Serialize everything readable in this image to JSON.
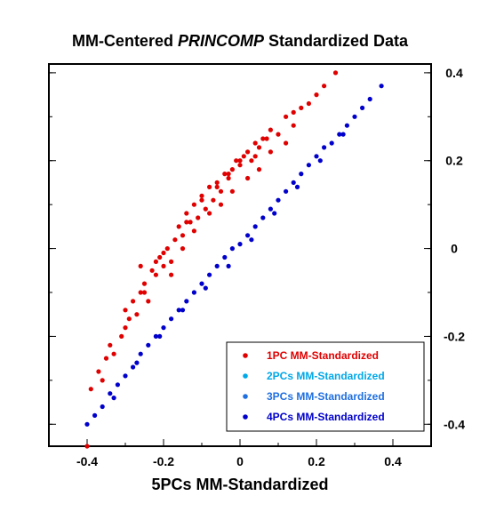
{
  "chart_data": {
    "type": "scatter",
    "title_parts": [
      "MM-Centered ",
      "PRINCOMP",
      " Standardized Data"
    ],
    "xlabel": "5PCs MM-Standardized",
    "ylabel": "",
    "xlim": [
      -0.5,
      0.5
    ],
    "ylim": [
      -0.45,
      0.42
    ],
    "x_ticks": [
      "-0.4",
      "-0.2",
      "0",
      "0.2",
      "0.4"
    ],
    "y_ticks": [
      "0.4",
      "0.2",
      "0",
      "-0.2",
      "-0.4"
    ],
    "y_axis_side": "right",
    "grid": false,
    "legend_position": "bottom-right",
    "series": [
      {
        "name": "1PC MM-Standardized",
        "color": "#e00000",
        "x": [
          -0.4,
          -0.39,
          -0.37,
          -0.36,
          -0.35,
          -0.34,
          -0.33,
          -0.31,
          -0.3,
          -0.29,
          -0.28,
          -0.27,
          -0.26,
          -0.25,
          -0.24,
          -0.23,
          -0.22,
          -0.21,
          -0.2,
          -0.19,
          -0.18,
          -0.17,
          -0.16,
          -0.15,
          -0.14,
          -0.13,
          -0.12,
          -0.11,
          -0.1,
          -0.09,
          -0.08,
          -0.07,
          -0.06,
          -0.05,
          -0.04,
          -0.03,
          -0.02,
          -0.01,
          0.0,
          0.01,
          0.02,
          0.03,
          0.04,
          0.05,
          0.06,
          0.08,
          0.1,
          0.12,
          0.14,
          0.16,
          0.18,
          0.2,
          0.22,
          0.25,
          -0.3,
          -0.25,
          -0.22,
          -0.18,
          -0.15,
          -0.12,
          -0.08,
          -0.05,
          -0.02,
          0.02,
          0.05,
          0.08,
          0.12,
          0.14,
          -0.26,
          -0.2,
          -0.14,
          -0.1,
          -0.06,
          -0.03,
          0.0,
          0.04,
          0.07
        ],
        "y": [
          -0.45,
          -0.32,
          -0.28,
          -0.3,
          -0.25,
          -0.22,
          -0.24,
          -0.2,
          -0.18,
          -0.16,
          -0.12,
          -0.15,
          -0.1,
          -0.08,
          -0.12,
          -0.05,
          -0.06,
          -0.02,
          -0.04,
          0.0,
          -0.03,
          0.02,
          0.05,
          0.03,
          0.08,
          0.06,
          0.1,
          0.07,
          0.12,
          0.09,
          0.14,
          0.11,
          0.15,
          0.13,
          0.17,
          0.16,
          0.18,
          0.2,
          0.19,
          0.21,
          0.22,
          0.2,
          0.24,
          0.23,
          0.25,
          0.27,
          0.26,
          0.3,
          0.31,
          0.32,
          0.33,
          0.35,
          0.37,
          0.4,
          -0.14,
          -0.1,
          -0.03,
          -0.06,
          0.0,
          0.04,
          0.08,
          0.1,
          0.13,
          0.16,
          0.18,
          0.22,
          0.24,
          0.28,
          -0.04,
          -0.01,
          0.06,
          0.11,
          0.14,
          0.17,
          0.2,
          0.21,
          0.25
        ]
      },
      {
        "name": "2PCs MM-Standardized",
        "color": "#00a8e8",
        "x": [],
        "y": []
      },
      {
        "name": "3PCs MM-Standardized",
        "color": "#1f6fe0",
        "x": [],
        "y": []
      },
      {
        "name": "4PCs MM-Standardized",
        "color": "#0000cc",
        "x": [
          -0.4,
          -0.38,
          -0.36,
          -0.34,
          -0.32,
          -0.3,
          -0.28,
          -0.26,
          -0.24,
          -0.22,
          -0.2,
          -0.18,
          -0.16,
          -0.14,
          -0.12,
          -0.1,
          -0.08,
          -0.06,
          -0.04,
          -0.02,
          0.0,
          0.02,
          0.04,
          0.06,
          0.08,
          0.1,
          0.12,
          0.14,
          0.16,
          0.18,
          0.2,
          0.22,
          0.24,
          0.26,
          0.28,
          0.3,
          0.32,
          0.34,
          0.37,
          -0.33,
          -0.27,
          -0.21,
          -0.15,
          -0.09,
          -0.03,
          0.03,
          0.09,
          0.15,
          0.21,
          0.27
        ],
        "y": [
          -0.4,
          -0.38,
          -0.36,
          -0.33,
          -0.31,
          -0.29,
          -0.27,
          -0.24,
          -0.22,
          -0.2,
          -0.18,
          -0.16,
          -0.14,
          -0.12,
          -0.1,
          -0.08,
          -0.06,
          -0.04,
          -0.02,
          0.0,
          0.01,
          0.03,
          0.05,
          0.07,
          0.09,
          0.11,
          0.13,
          0.15,
          0.17,
          0.19,
          0.21,
          0.23,
          0.24,
          0.26,
          0.28,
          0.3,
          0.32,
          0.34,
          0.37,
          -0.34,
          -0.26,
          -0.2,
          -0.14,
          -0.09,
          -0.04,
          0.02,
          0.08,
          0.14,
          0.2,
          0.26
        ]
      }
    ]
  }
}
